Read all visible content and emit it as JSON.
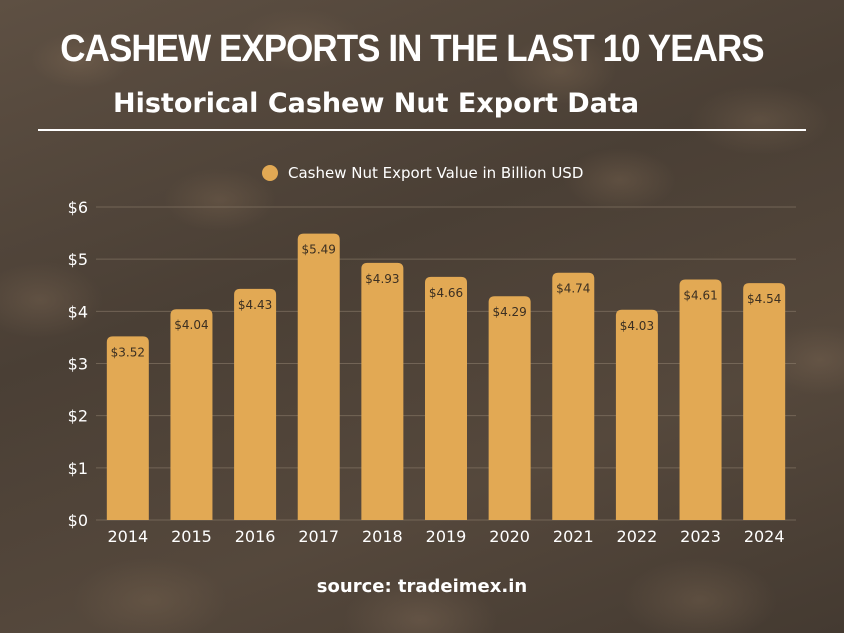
{
  "title": "CASHEW EXPORTS IN THE LAST  10 YEARS",
  "subtitle": "Historical Cashew Nut Export Data",
  "source": "source: tradeimex.in",
  "colors": {
    "bar": "#e2a954",
    "text": "#ffffff",
    "grid": "#8a7b6a"
  },
  "chart_data": {
    "type": "bar",
    "title": "CASHEW EXPORTS IN THE LAST  10 YEARS",
    "xlabel": "",
    "ylabel": "",
    "categories": [
      "2014",
      "2015",
      "2016",
      "2017",
      "2018",
      "2019",
      "2020",
      "2021",
      "2022",
      "2023",
      "2024"
    ],
    "series": [
      {
        "name": "Cashew Nut Export Value in Billion USD",
        "values": [
          3.52,
          4.04,
          4.43,
          5.49,
          4.93,
          4.66,
          4.29,
          4.74,
          4.03,
          4.61,
          4.54
        ],
        "labels": [
          "$3.52",
          "$4.04",
          "$4.43",
          "$5.49",
          "$4.93",
          "$4.66",
          "$4.29",
          "$4.74",
          "$4.03",
          "$4.61",
          "$4.54"
        ]
      }
    ],
    "ylim": [
      0,
      6
    ],
    "yticks": [
      0,
      1,
      2,
      3,
      4,
      5,
      6
    ],
    "ytick_labels": [
      "$0",
      "$1",
      "$2",
      "$3",
      "$4",
      "$5",
      "$6"
    ],
    "legend": "top-center",
    "grid": true
  }
}
